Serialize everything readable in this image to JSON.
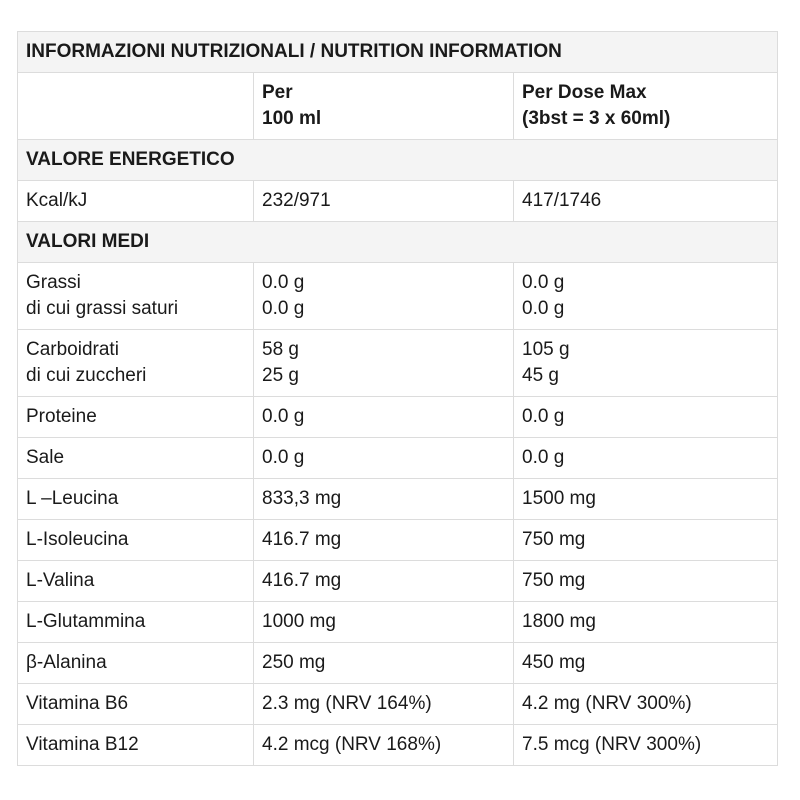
{
  "title": "INFORMAZIONI NUTRIZIONALI / NUTRITION INFORMATION",
  "columns": {
    "label": "",
    "per100": [
      "Per",
      "100 ml"
    ],
    "perDose": [
      "Per Dose Max",
      "(3bst = 3 x 60ml)"
    ]
  },
  "sections": {
    "energy": "VALORE ENERGETICO",
    "averages": "VALORI MEDI"
  },
  "energy_row": {
    "label": "Kcal/kJ",
    "per100": "232/971",
    "perDose": "417/1746"
  },
  "rows": [
    {
      "label": [
        "Grassi",
        "di cui grassi saturi"
      ],
      "per100": [
        "0.0 g",
        "0.0 g"
      ],
      "perDose": [
        "0.0 g",
        "0.0 g"
      ]
    },
    {
      "label": [
        "Carboidrati",
        "di cui zuccheri"
      ],
      "per100": [
        "58 g",
        "25 g"
      ],
      "perDose": [
        "105 g",
        "45 g"
      ]
    },
    {
      "label": [
        "Proteine"
      ],
      "per100": [
        "0.0 g"
      ],
      "perDose": [
        "0.0 g"
      ]
    },
    {
      "label": [
        "Sale"
      ],
      "per100": [
        "0.0 g"
      ],
      "perDose": [
        "0.0 g"
      ]
    },
    {
      "label": [
        "L –Leucina"
      ],
      "per100": [
        "833,3 mg"
      ],
      "perDose": [
        "1500 mg"
      ]
    },
    {
      "label": [
        "L-Isoleucina"
      ],
      "per100": [
        "416.7 mg"
      ],
      "perDose": [
        "750 mg"
      ]
    },
    {
      "label": [
        "L-Valina"
      ],
      "per100": [
        "416.7 mg"
      ],
      "perDose": [
        "750 mg"
      ]
    },
    {
      "label": [
        "L-Glutammina"
      ],
      "per100": [
        "1000 mg"
      ],
      "perDose": [
        "1800 mg"
      ]
    },
    {
      "label": [
        "β-Alanina"
      ],
      "per100": [
        "250 mg"
      ],
      "perDose": [
        "450 mg"
      ]
    },
    {
      "label": [
        "Vitamina B6"
      ],
      "per100": [
        "2.3 mg (NRV 164%)"
      ],
      "perDose": [
        "4.2 mg (NRV 300%)"
      ]
    },
    {
      "label": [
        "Vitamina B12"
      ],
      "per100": [
        "4.2 mcg (NRV 168%)"
      ],
      "perDose": [
        "7.5 mcg (NRV 300%)"
      ]
    }
  ]
}
